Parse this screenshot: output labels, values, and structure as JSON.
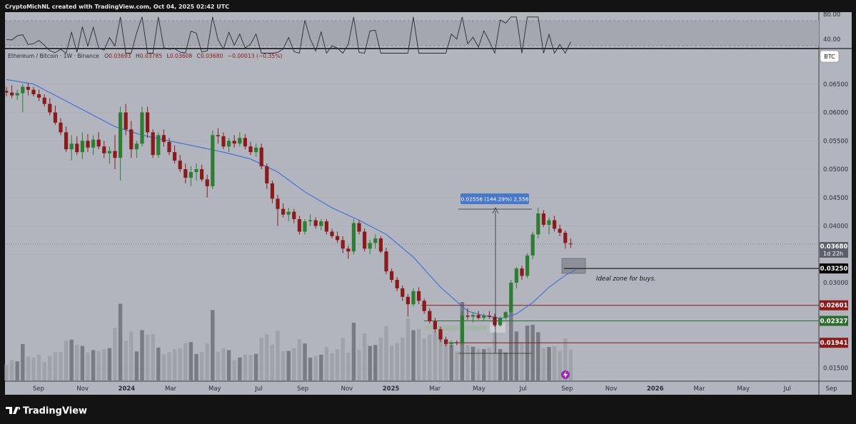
{
  "header": {
    "author_line": "CryptoMichNL created with TradingView.com, Oct 04, 2025 02:42 UTC"
  },
  "rsi": {
    "levels": [
      "80.00",
      "40.00"
    ]
  },
  "symbol": {
    "name": "Ethereum / Bitcoin · 1W · Binance",
    "open_label": "O",
    "open": "0.03693",
    "high_label": "H",
    "high": "0.03785",
    "low_label": "L",
    "low": "0.03608",
    "close_label": "C",
    "close": "0.03680",
    "change": "−0.00013 (−0.35%)"
  },
  "currency_badge": "BTC",
  "price_axis": {
    "ticks": [
      "0.06500",
      "0.06000",
      "0.05500",
      "0.05000",
      "0.04500",
      "0.04000",
      "0.03500",
      "0.03000",
      "0.01500"
    ],
    "last_price": "0.03680",
    "countdown": "1d 22h",
    "levels": [
      {
        "value": "0.03250",
        "color": "#000000"
      },
      {
        "value": "0.02601",
        "color": "#8b1a1a"
      },
      {
        "value": "0.02327",
        "color": "#2e6b2e"
      },
      {
        "value": "0.01941",
        "color": "#8b1a1a"
      }
    ]
  },
  "time_axis": [
    "Sep",
    "Nov",
    "2024",
    "Mar",
    "May",
    "Jul",
    "Sep",
    "Nov",
    "2025",
    "Mar",
    "May",
    "Jul",
    "Sep",
    "Nov",
    "2026",
    "Mar",
    "May",
    "Jul",
    "Sep"
  ],
  "measure_label": "0.02556 (144.29%) 2,556",
  "annotation": "Ideal zone for buys.",
  "brand": "TradingView",
  "colors": {
    "up": "#2e7d32",
    "down": "#8b1a1a",
    "ma": "#3c6fd8",
    "chart_bg": "#b2b5be",
    "frame": "#131313"
  },
  "chart_data": {
    "type": "candlestick",
    "title": "Ethereum / Bitcoin · 1W · Binance",
    "interval": "1W",
    "x_range": [
      "2023-08",
      "2026-09"
    ],
    "y_range": [
      0.0125,
      0.069
    ],
    "series": [
      {
        "name": "candles",
        "ohlc": [
          [
            0.0638,
            0.0645,
            0.0628,
            0.0635
          ],
          [
            0.0635,
            0.0648,
            0.0625,
            0.063
          ],
          [
            0.063,
            0.064,
            0.0622,
            0.0634
          ],
          [
            0.0634,
            0.065,
            0.06,
            0.0645
          ],
          [
            0.0645,
            0.0652,
            0.063,
            0.064
          ],
          [
            0.064,
            0.0645,
            0.0628,
            0.0632
          ],
          [
            0.0632,
            0.064,
            0.062,
            0.0626
          ],
          [
            0.0626,
            0.0632,
            0.061,
            0.0615
          ],
          [
            0.0615,
            0.0625,
            0.0595,
            0.06
          ],
          [
            0.06,
            0.0612,
            0.0578,
            0.0582
          ],
          [
            0.0582,
            0.059,
            0.056,
            0.0565
          ],
          [
            0.0565,
            0.0575,
            0.053,
            0.0535
          ],
          [
            0.0535,
            0.056,
            0.0515,
            0.0545
          ],
          [
            0.0545,
            0.0558,
            0.0525,
            0.053
          ],
          [
            0.053,
            0.0565,
            0.0518,
            0.055
          ],
          [
            0.055,
            0.0562,
            0.053,
            0.0538
          ],
          [
            0.0538,
            0.056,
            0.0525,
            0.0552
          ],
          [
            0.0552,
            0.0565,
            0.0535,
            0.054
          ],
          [
            0.054,
            0.055,
            0.052,
            0.0528
          ],
          [
            0.0528,
            0.054,
            0.051,
            0.0532
          ],
          [
            0.0532,
            0.056,
            0.05,
            0.052
          ],
          [
            0.052,
            0.061,
            0.048,
            0.06
          ],
          [
            0.06,
            0.0615,
            0.056,
            0.057
          ],
          [
            0.057,
            0.0585,
            0.052,
            0.0535
          ],
          [
            0.0535,
            0.055,
            0.052,
            0.0545
          ],
          [
            0.0545,
            0.061,
            0.054,
            0.06
          ],
          [
            0.06,
            0.061,
            0.0555,
            0.0565
          ],
          [
            0.0565,
            0.057,
            0.052,
            0.0525
          ],
          [
            0.0525,
            0.0565,
            0.052,
            0.056
          ],
          [
            0.056,
            0.057,
            0.054,
            0.0548
          ],
          [
            0.0548,
            0.0555,
            0.0525,
            0.053
          ],
          [
            0.053,
            0.0542,
            0.051,
            0.0515
          ],
          [
            0.0515,
            0.0525,
            0.0495,
            0.05
          ],
          [
            0.05,
            0.051,
            0.0475,
            0.0485
          ],
          [
            0.0485,
            0.0505,
            0.047,
            0.0495
          ],
          [
            0.0495,
            0.051,
            0.048,
            0.05
          ],
          [
            0.05,
            0.0508,
            0.0478,
            0.0482
          ],
          [
            0.0482,
            0.049,
            0.045,
            0.047
          ],
          [
            0.047,
            0.0568,
            0.0465,
            0.056
          ],
          [
            0.056,
            0.0572,
            0.0545,
            0.0558
          ],
          [
            0.0558,
            0.0565,
            0.0535,
            0.054
          ],
          [
            0.054,
            0.0555,
            0.053,
            0.055
          ],
          [
            0.055,
            0.056,
            0.0538,
            0.0545
          ],
          [
            0.0545,
            0.0565,
            0.054,
            0.0555
          ],
          [
            0.0555,
            0.0562,
            0.0535,
            0.054
          ],
          [
            0.054,
            0.0548,
            0.0525,
            0.053
          ],
          [
            0.053,
            0.0545,
            0.0522,
            0.0538
          ],
          [
            0.0538,
            0.0545,
            0.05,
            0.0505
          ],
          [
            0.0505,
            0.051,
            0.0465,
            0.0475
          ],
          [
            0.0475,
            0.048,
            0.044,
            0.0448
          ],
          [
            0.0448,
            0.0455,
            0.04,
            0.043
          ],
          [
            0.043,
            0.044,
            0.0415,
            0.042
          ],
          [
            0.042,
            0.0432,
            0.0408,
            0.0425
          ],
          [
            0.0425,
            0.043,
            0.0405,
            0.0412
          ],
          [
            0.0412,
            0.0418,
            0.0385,
            0.039
          ],
          [
            0.039,
            0.0412,
            0.0385,
            0.0408
          ],
          [
            0.0408,
            0.042,
            0.04,
            0.041
          ],
          [
            0.041,
            0.0415,
            0.0395,
            0.04
          ],
          [
            0.04,
            0.0412,
            0.0392,
            0.0408
          ],
          [
            0.0408,
            0.0412,
            0.0385,
            0.039
          ],
          [
            0.039,
            0.0395,
            0.0378,
            0.0382
          ],
          [
            0.0382,
            0.039,
            0.037,
            0.0375
          ],
          [
            0.0375,
            0.0382,
            0.0352,
            0.036
          ],
          [
            0.036,
            0.0365,
            0.0342,
            0.0355
          ],
          [
            0.0355,
            0.0412,
            0.035,
            0.0405
          ],
          [
            0.0405,
            0.041,
            0.0385,
            0.039
          ],
          [
            0.039,
            0.0395,
            0.0355,
            0.036
          ],
          [
            0.036,
            0.0375,
            0.035,
            0.037
          ],
          [
            0.037,
            0.0385,
            0.036,
            0.0378
          ],
          [
            0.0378,
            0.0382,
            0.0352,
            0.0355
          ],
          [
            0.0355,
            0.0362,
            0.0315,
            0.032
          ],
          [
            0.032,
            0.0325,
            0.03,
            0.0305
          ],
          [
            0.0305,
            0.031,
            0.0285,
            0.029
          ],
          [
            0.029,
            0.0295,
            0.0268,
            0.0275
          ],
          [
            0.0275,
            0.028,
            0.024,
            0.0262
          ],
          [
            0.0262,
            0.029,
            0.0258,
            0.0285
          ],
          [
            0.0285,
            0.0292,
            0.0262,
            0.0268
          ],
          [
            0.0268,
            0.0272,
            0.0245,
            0.025
          ],
          [
            0.025,
            0.0255,
            0.0228,
            0.0232
          ],
          [
            0.0232,
            0.0238,
            0.0212,
            0.0218
          ],
          [
            0.0218,
            0.0222,
            0.0195,
            0.02
          ],
          [
            0.02,
            0.0205,
            0.0188,
            0.0192
          ],
          [
            0.0192,
            0.0198,
            0.0185,
            0.0195
          ],
          [
            0.0195,
            0.0198,
            0.019,
            0.0194
          ],
          [
            0.0194,
            0.025,
            0.019,
            0.0242
          ],
          [
            0.0242,
            0.0255,
            0.0235,
            0.024
          ],
          [
            0.024,
            0.0248,
            0.023,
            0.0243
          ],
          [
            0.0243,
            0.025,
            0.0235,
            0.0238
          ],
          [
            0.0238,
            0.0246,
            0.0232,
            0.0242
          ],
          [
            0.0242,
            0.025,
            0.0236,
            0.024
          ],
          [
            0.024,
            0.0245,
            0.0222,
            0.0225
          ],
          [
            0.0225,
            0.024,
            0.0222,
            0.0238
          ],
          [
            0.0238,
            0.025,
            0.0235,
            0.0248
          ],
          [
            0.0248,
            0.0305,
            0.0245,
            0.03
          ],
          [
            0.03,
            0.0328,
            0.029,
            0.0325
          ],
          [
            0.0325,
            0.033,
            0.0305,
            0.0312
          ],
          [
            0.0312,
            0.0352,
            0.0308,
            0.0348
          ],
          [
            0.0348,
            0.039,
            0.0342,
            0.0385
          ],
          [
            0.0385,
            0.0432,
            0.0378,
            0.0422
          ],
          [
            0.0422,
            0.0428,
            0.0398,
            0.0402
          ],
          [
            0.0402,
            0.0415,
            0.0385,
            0.041
          ],
          [
            0.041,
            0.0418,
            0.039,
            0.0395
          ],
          [
            0.0395,
            0.0402,
            0.0382,
            0.0388
          ],
          [
            0.0388,
            0.0392,
            0.036,
            0.037
          ],
          [
            0.0369,
            0.0378,
            0.0361,
            0.0368
          ]
        ]
      },
      {
        "name": "moving-average",
        "points": [
          [
            0,
            0.0658
          ],
          [
            5,
            0.065
          ],
          [
            10,
            0.0625
          ],
          [
            15,
            0.06
          ],
          [
            20,
            0.0575
          ],
          [
            25,
            0.056
          ],
          [
            30,
            0.055
          ],
          [
            35,
            0.054
          ],
          [
            40,
            0.053
          ],
          [
            45,
            0.0518
          ],
          [
            50,
            0.0495
          ],
          [
            55,
            0.046
          ],
          [
            60,
            0.0432
          ],
          [
            65,
            0.041
          ],
          [
            70,
            0.0385
          ],
          [
            75,
            0.0345
          ],
          [
            80,
            0.0292
          ],
          [
            85,
            0.025
          ],
          [
            88,
            0.0242
          ],
          [
            91,
            0.0237
          ],
          [
            94,
            0.0245
          ],
          [
            97,
            0.0265
          ],
          [
            100,
            0.0292
          ],
          [
            103,
            0.0313
          ],
          [
            105,
            0.0323
          ]
        ]
      }
    ]
  }
}
